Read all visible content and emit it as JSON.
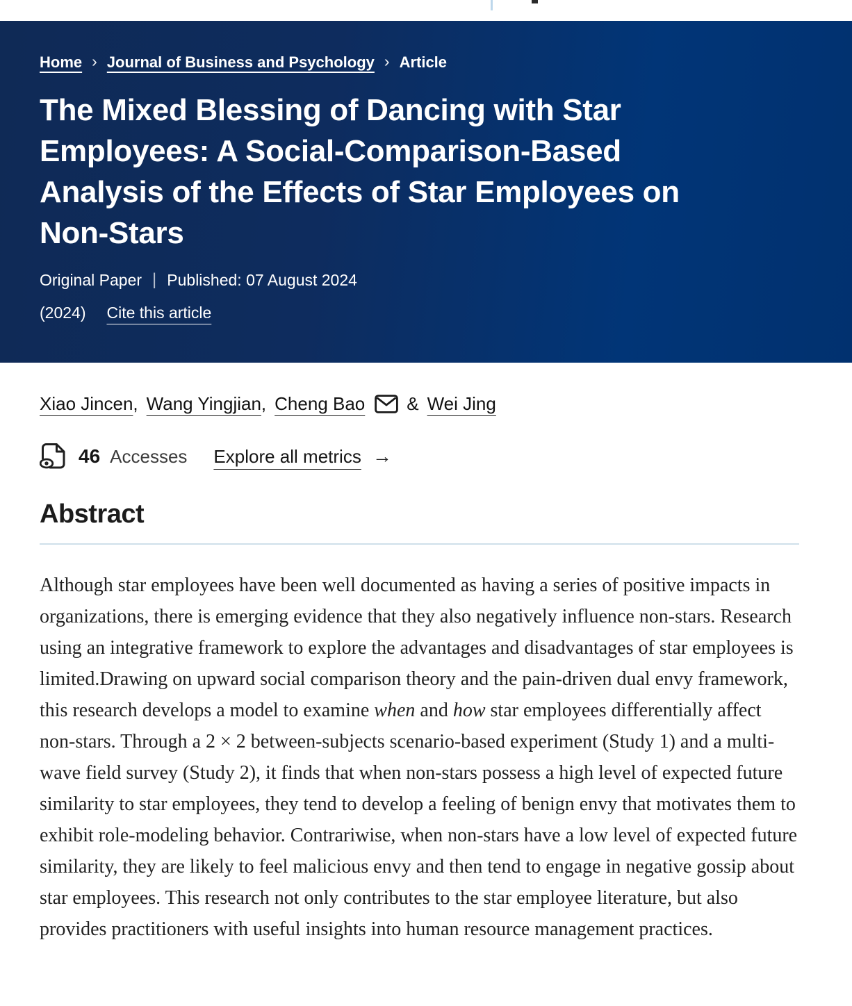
{
  "breadcrumb": {
    "items": [
      {
        "label": "Home"
      },
      {
        "label": "Journal of Business and Psychology"
      },
      {
        "label": "Article"
      }
    ],
    "separator": "›"
  },
  "header": {
    "title_lines": [
      "The Mixed Blessing of Dancing with Star",
      "Employees: A Social-Comparison-Based",
      "Analysis of the Effects of Star Employees on",
      "Non-Stars"
    ],
    "article_type": "Original Paper",
    "meta_divider": "|",
    "published": "Published: 07 August 2024",
    "year": "(2024)",
    "cite_link": "Cite this article"
  },
  "authors": {
    "names": [
      "Xiao Jincen",
      "Wang Yingjian",
      "Cheng Bao",
      "Wei Jing"
    ],
    "separator": ",",
    "ampersand": "&"
  },
  "metrics": {
    "accesses_count": "46",
    "accesses_label": "Accesses",
    "explore_link": "Explore all metrics",
    "arrow": "→"
  },
  "abstract": {
    "heading": "Abstract",
    "segments": [
      {
        "text": "Although star employees have been well documented as having a series of positive impacts in organizations, there is emerging evidence that they also negatively influence non-stars. Research using an integrative framework to explore the advantages and disadvantages of star employees is limited.Drawing on upward social comparison theory and the pain-driven dual envy framework, this research develops a model to examine ",
        "italic": false
      },
      {
        "text": "when",
        "italic": true
      },
      {
        "text": " and ",
        "italic": false
      },
      {
        "text": "how",
        "italic": true
      },
      {
        "text": " star employees differentially affect non-stars. Through a 2 × 2 between-subjects scenario-based experiment (Study 1) and a multi-wave field survey (Study 2), it finds that when non-stars possess a high level of expected future similarity to star employees, they tend to develop a feeling of benign envy that motivates them to exhibit role-modeling behavior. Contrariwise, when non-stars have a low level of expected future similarity, they are likely to feel malicious envy and then tend to engage in negative gossip about star employees. This research not only contributes to the star employee literature, but also provides practitioners with useful insights into human resource management practices.",
        "italic": false
      }
    ]
  },
  "colors": {
    "header_gradient_left": "#0f2a56",
    "header_gradient_right": "#01316f",
    "section_divider": "#cfe0ea"
  }
}
